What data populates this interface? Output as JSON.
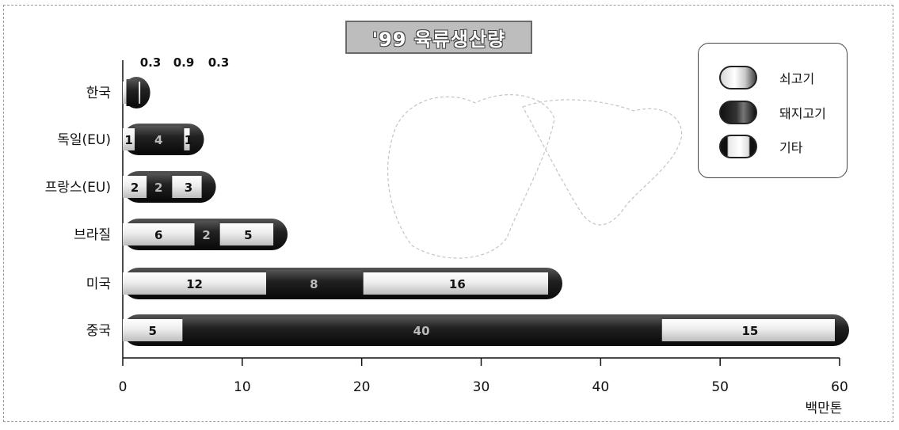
{
  "chart_data": {
    "type": "bar",
    "orientation": "horizontal",
    "stacked": true,
    "title": "'99 육류생산량",
    "unit": "백만톤",
    "categories": [
      "한국",
      "독일(EU)",
      "프랑스(EU)",
      "브라질",
      "미국",
      "중국"
    ],
    "series": [
      {
        "name": "쇠고기",
        "values": [
          0.3,
          1,
          2,
          6,
          12,
          5
        ],
        "color": "#e6e6e6"
      },
      {
        "name": "돼지고기",
        "values": [
          0.9,
          4,
          2,
          2,
          8,
          40
        ],
        "color": "#2a2a2a"
      },
      {
        "name": "기타",
        "values": [
          0.3,
          1,
          3,
          5,
          16,
          15
        ],
        "color": "#e6e6e6"
      }
    ],
    "segment_labels": [
      [
        "",
        "",
        ""
      ],
      [
        "1",
        "4",
        "1"
      ],
      [
        "2",
        "2",
        "3"
      ],
      [
        "6",
        "2",
        "5"
      ],
      [
        "12",
        "8",
        "16"
      ],
      [
        "5",
        "40",
        "15"
      ]
    ],
    "top_labels": [
      "0.3",
      "0.9",
      "0.3"
    ],
    "xlim": [
      0,
      60
    ],
    "xticks": [
      0,
      10,
      20,
      30,
      40,
      50,
      60
    ],
    "grid": false,
    "legend_position": "top-right"
  }
}
